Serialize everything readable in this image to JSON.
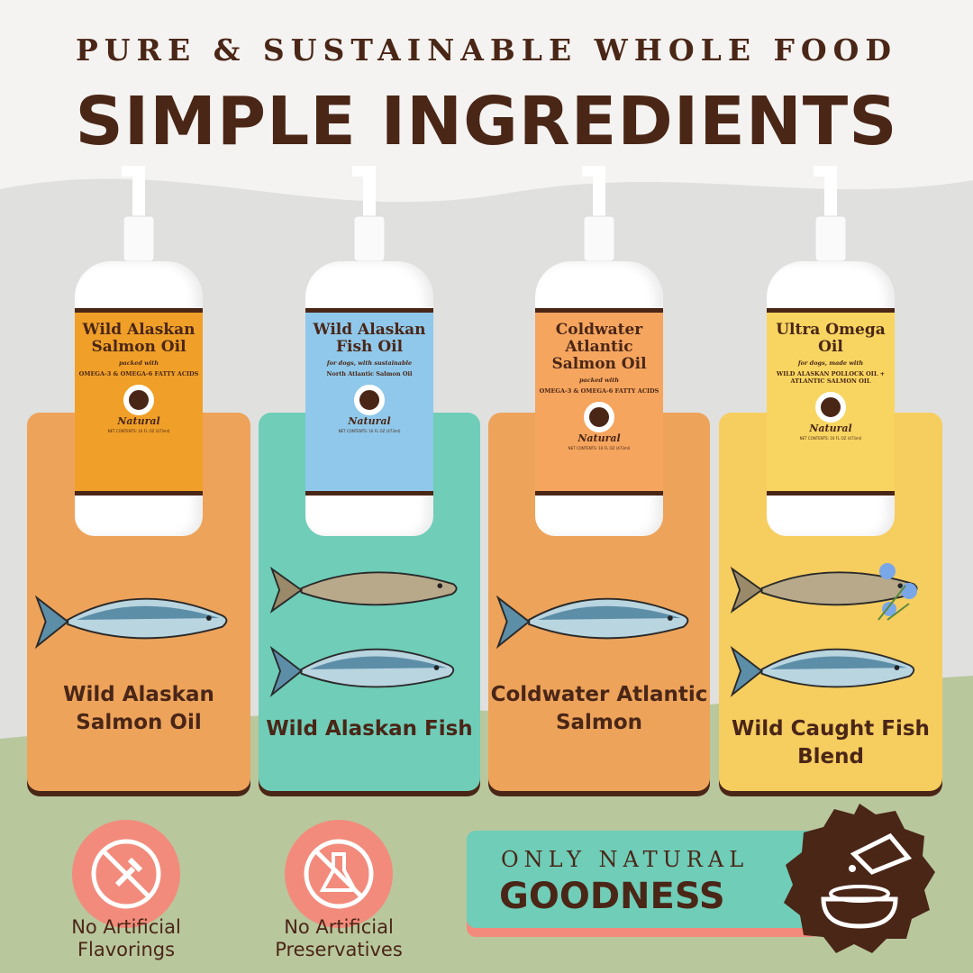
{
  "header": {
    "tagline": "PURE & SUSTAINABLE WHOLE FOOD",
    "title": "SIMPLE INGREDIENTS"
  },
  "colors": {
    "brown": "#4a2617",
    "orange": "#eda35a",
    "teal": "#6fcdb8",
    "yellow": "#f6cd5f",
    "salmon": "#f28b7c",
    "green": "#b9c79d",
    "grey": "#e0e0df"
  },
  "products": [
    {
      "name": "Wild Alaskan Salmon Oil",
      "sub1": "packed with",
      "sub2": "OMEGA-3 & OMEGA-6 FATTY ACIDS",
      "label_color": "#f0a028",
      "card_color": "#eda35a",
      "ingredient": "Wild Alaskan Salmon Oil",
      "fish": [
        "salmon"
      ]
    },
    {
      "name": "Wild Alaskan Fish Oil",
      "sub1": "for dogs, with sustainable",
      "sub2": "North Atlantic Salmon Oil",
      "label_color": "#8fc8ea",
      "card_color": "#6fcdb8",
      "ingredient": "Wild Alaskan Fish",
      "fish": [
        "pollock",
        "salmon"
      ]
    },
    {
      "name": "Coldwater Atlantic Salmon Oil",
      "sub1": "packed with",
      "sub2": "OMEGA-3 & OMEGA-6 FATTY ACIDS",
      "label_color": "#f5a55e",
      "card_color": "#eda35a",
      "ingredient": "Coldwater Atlantic Salmon",
      "fish": [
        "salmon"
      ]
    },
    {
      "name": "Ultra Omega Oil",
      "sub1": "for dogs, made with",
      "sub2": "WILD ALASKAN POLLOCK OIL + ATLANTIC SALMON OIL",
      "label_color": "#f7d560",
      "card_color": "#f6cd5f",
      "ingredient": "Wild Caught Fish Blend",
      "fish": [
        "pollock",
        "salmon"
      ]
    }
  ],
  "brand": "Natural",
  "net": "NET CONTENTS: 16 FL OZ (473ml)",
  "features": [
    {
      "label": "No Artificial Flavorings",
      "icon": "no-dropper-icon"
    },
    {
      "label": "No Artificial Preservatives",
      "icon": "no-flask-icon"
    }
  ],
  "banner": {
    "line1": "ONLY NATURAL",
    "line2": "GOODNESS",
    "icon": "bottle-pouring-on-bowl-icon"
  }
}
